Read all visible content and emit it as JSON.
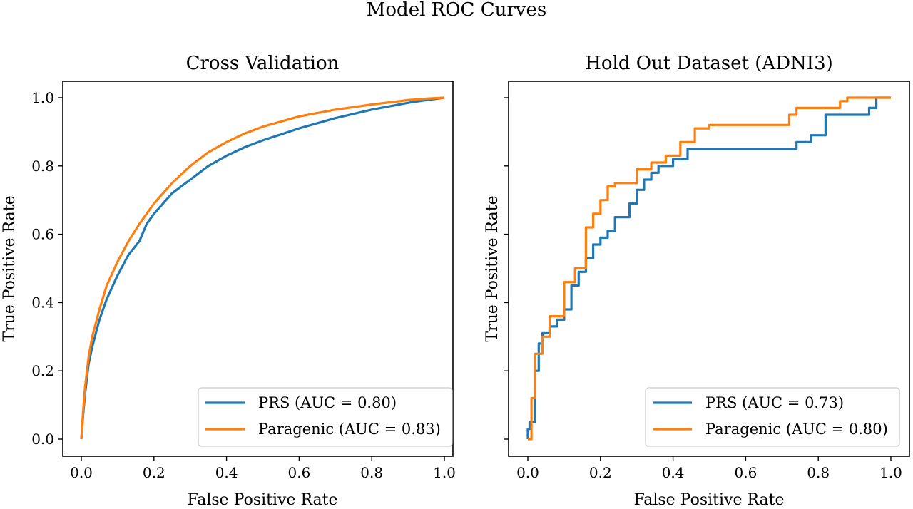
{
  "figure": {
    "suptitle": "Model ROC Curves"
  },
  "colors": {
    "prs": "#1f77b4",
    "paragenic": "#ff7f0e"
  },
  "chart_data": [
    {
      "type": "line",
      "title": "Cross Validation",
      "xlabel": "False Positive Rate",
      "ylabel": "True Positive Rate",
      "xlim": [
        0,
        1
      ],
      "ylim": [
        0,
        1
      ],
      "xticks": [
        "0.0",
        "0.2",
        "0.4",
        "0.6",
        "0.8",
        "1.0"
      ],
      "yticks": [
        "0.0",
        "0.2",
        "0.4",
        "0.6",
        "0.8",
        "1.0"
      ],
      "legend_position": "lower-right",
      "series": [
        {
          "name": "PRS (AUC = 0.80)",
          "color": "#1f77b4",
          "x": [
            0,
            0.005,
            0.01,
            0.02,
            0.03,
            0.05,
            0.07,
            0.1,
            0.13,
            0.16,
            0.18,
            0.2,
            0.25,
            0.3,
            0.35,
            0.4,
            0.45,
            0.5,
            0.6,
            0.7,
            0.8,
            0.9,
            0.95,
            1.0
          ],
          "y": [
            0,
            0.07,
            0.13,
            0.22,
            0.27,
            0.35,
            0.41,
            0.48,
            0.54,
            0.58,
            0.63,
            0.66,
            0.72,
            0.76,
            0.8,
            0.83,
            0.855,
            0.875,
            0.91,
            0.94,
            0.965,
            0.985,
            0.993,
            1.0
          ]
        },
        {
          "name": "Paragenic (AUC = 0.83)",
          "color": "#ff7f0e",
          "x": [
            0,
            0.005,
            0.01,
            0.02,
            0.03,
            0.05,
            0.07,
            0.1,
            0.13,
            0.16,
            0.2,
            0.25,
            0.3,
            0.35,
            0.4,
            0.45,
            0.5,
            0.6,
            0.7,
            0.8,
            0.9,
            0.95,
            1.0
          ],
          "y": [
            0,
            0.08,
            0.15,
            0.24,
            0.3,
            0.38,
            0.45,
            0.52,
            0.58,
            0.63,
            0.69,
            0.75,
            0.8,
            0.84,
            0.87,
            0.895,
            0.915,
            0.945,
            0.965,
            0.98,
            0.993,
            0.997,
            1.0
          ]
        }
      ]
    },
    {
      "type": "line",
      "title": "Hold Out Dataset (ADNI3)",
      "xlabel": "False Positive Rate",
      "ylabel": "True Positive Rate",
      "xlim": [
        0,
        1
      ],
      "ylim": [
        0,
        1
      ],
      "xticks": [
        "0.0",
        "0.2",
        "0.4",
        "0.6",
        "0.8",
        "1.0"
      ],
      "yticks": [],
      "legend_position": "lower-right",
      "series": [
        {
          "name": "PRS (AUC = 0.73)",
          "color": "#1f77b4",
          "x": [
            0,
            0,
            0.005,
            0.005,
            0.02,
            0.02,
            0.03,
            0.03,
            0.04,
            0.04,
            0.06,
            0.06,
            0.08,
            0.08,
            0.1,
            0.1,
            0.12,
            0.12,
            0.14,
            0.14,
            0.16,
            0.16,
            0.18,
            0.18,
            0.2,
            0.2,
            0.22,
            0.22,
            0.24,
            0.24,
            0.28,
            0.28,
            0.3,
            0.3,
            0.32,
            0.32,
            0.34,
            0.34,
            0.36,
            0.36,
            0.4,
            0.4,
            0.44,
            0.44,
            0.5,
            0.5,
            0.74,
            0.74,
            0.78,
            0.78,
            0.82,
            0.82,
            0.94,
            0.94,
            0.96,
            0.96,
            1.0
          ],
          "y": [
            0,
            0.03,
            0.03,
            0.05,
            0.05,
            0.2,
            0.2,
            0.28,
            0.28,
            0.31,
            0.31,
            0.33,
            0.33,
            0.35,
            0.35,
            0.38,
            0.38,
            0.45,
            0.45,
            0.49,
            0.49,
            0.53,
            0.53,
            0.57,
            0.57,
            0.59,
            0.59,
            0.61,
            0.61,
            0.65,
            0.65,
            0.69,
            0.69,
            0.73,
            0.73,
            0.76,
            0.76,
            0.78,
            0.78,
            0.8,
            0.8,
            0.82,
            0.82,
            0.85,
            0.85,
            0.85,
            0.85,
            0.87,
            0.87,
            0.89,
            0.89,
            0.95,
            0.95,
            0.97,
            0.97,
            1.0,
            1.0
          ]
        },
        {
          "name": "Paragenic (AUC = 0.80)",
          "color": "#ff7f0e",
          "x": [
            0,
            0.01,
            0.01,
            0.02,
            0.02,
            0.04,
            0.04,
            0.06,
            0.06,
            0.1,
            0.1,
            0.13,
            0.13,
            0.16,
            0.16,
            0.18,
            0.18,
            0.2,
            0.2,
            0.22,
            0.22,
            0.24,
            0.24,
            0.3,
            0.3,
            0.34,
            0.34,
            0.38,
            0.38,
            0.42,
            0.42,
            0.46,
            0.46,
            0.5,
            0.5,
            0.72,
            0.72,
            0.74,
            0.74,
            0.86,
            0.86,
            0.88,
            0.88,
            1.0
          ],
          "y": [
            0,
            0,
            0.12,
            0.12,
            0.25,
            0.25,
            0.3,
            0.3,
            0.36,
            0.36,
            0.46,
            0.46,
            0.5,
            0.5,
            0.62,
            0.62,
            0.66,
            0.66,
            0.7,
            0.7,
            0.74,
            0.74,
            0.75,
            0.75,
            0.79,
            0.79,
            0.81,
            0.81,
            0.83,
            0.83,
            0.87,
            0.87,
            0.91,
            0.91,
            0.92,
            0.92,
            0.95,
            0.95,
            0.97,
            0.97,
            0.99,
            0.99,
            1.0,
            1.0
          ]
        }
      ]
    }
  ]
}
